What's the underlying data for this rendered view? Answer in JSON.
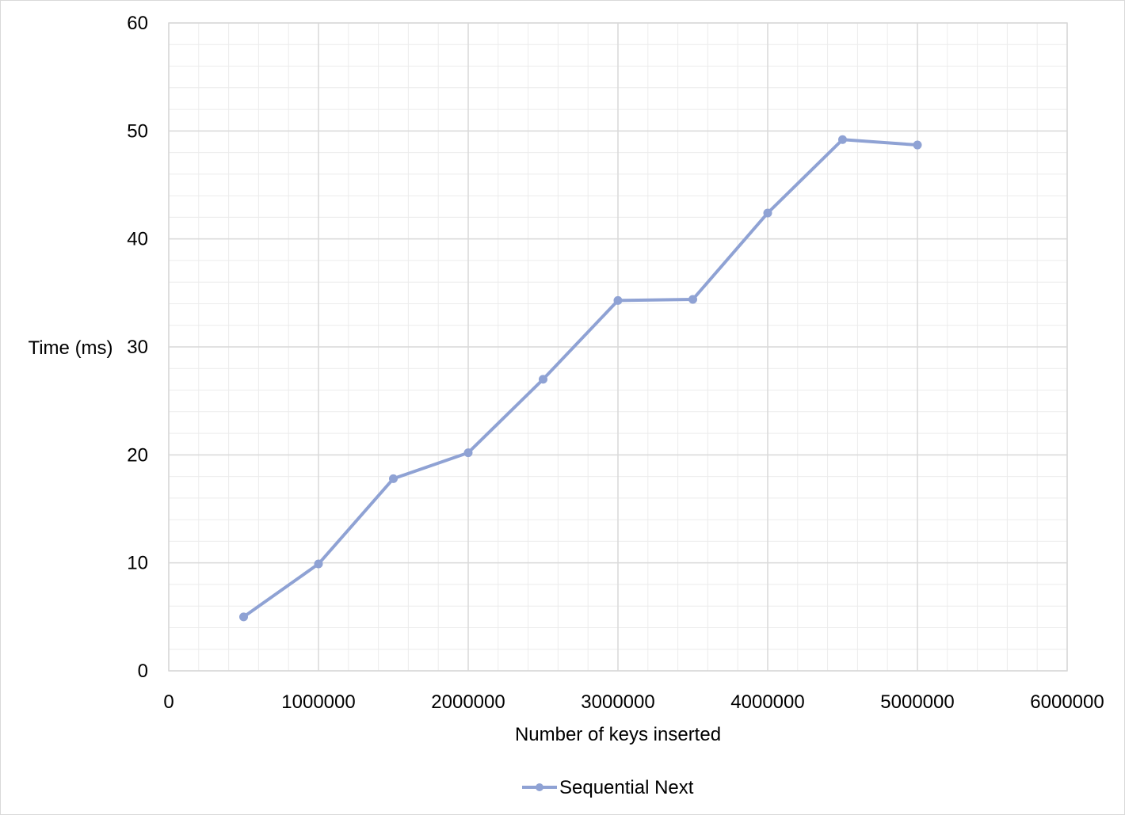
{
  "chart_data": {
    "type": "line",
    "title": "",
    "xlabel": "Number of keys inserted",
    "ylabel": "Time (ms)",
    "xlim": [
      0,
      6000000
    ],
    "ylim": [
      0,
      60
    ],
    "x_ticks": [
      0,
      1000000,
      2000000,
      3000000,
      4000000,
      5000000,
      6000000
    ],
    "x_tick_labels": [
      "0",
      "1000000",
      "2000000",
      "3000000",
      "4000000",
      "5000000",
      "6000000"
    ],
    "y_ticks": [
      0,
      10,
      20,
      30,
      40,
      50,
      60
    ],
    "y_tick_labels": [
      "0",
      "10",
      "20",
      "30",
      "40",
      "50",
      "60"
    ],
    "x_minor_step": 200000,
    "y_minor_step": 2,
    "grid": true,
    "legend_position": "bottom",
    "series": [
      {
        "name": "Sequential Next",
        "color": "#8FA2D4",
        "x": [
          500000,
          1000000,
          1500000,
          2000000,
          2500000,
          3000000,
          3500000,
          4000000,
          4500000,
          5000000
        ],
        "y": [
          5.0,
          9.9,
          17.8,
          20.2,
          27.0,
          34.3,
          34.4,
          42.4,
          49.2,
          48.7
        ]
      }
    ]
  }
}
